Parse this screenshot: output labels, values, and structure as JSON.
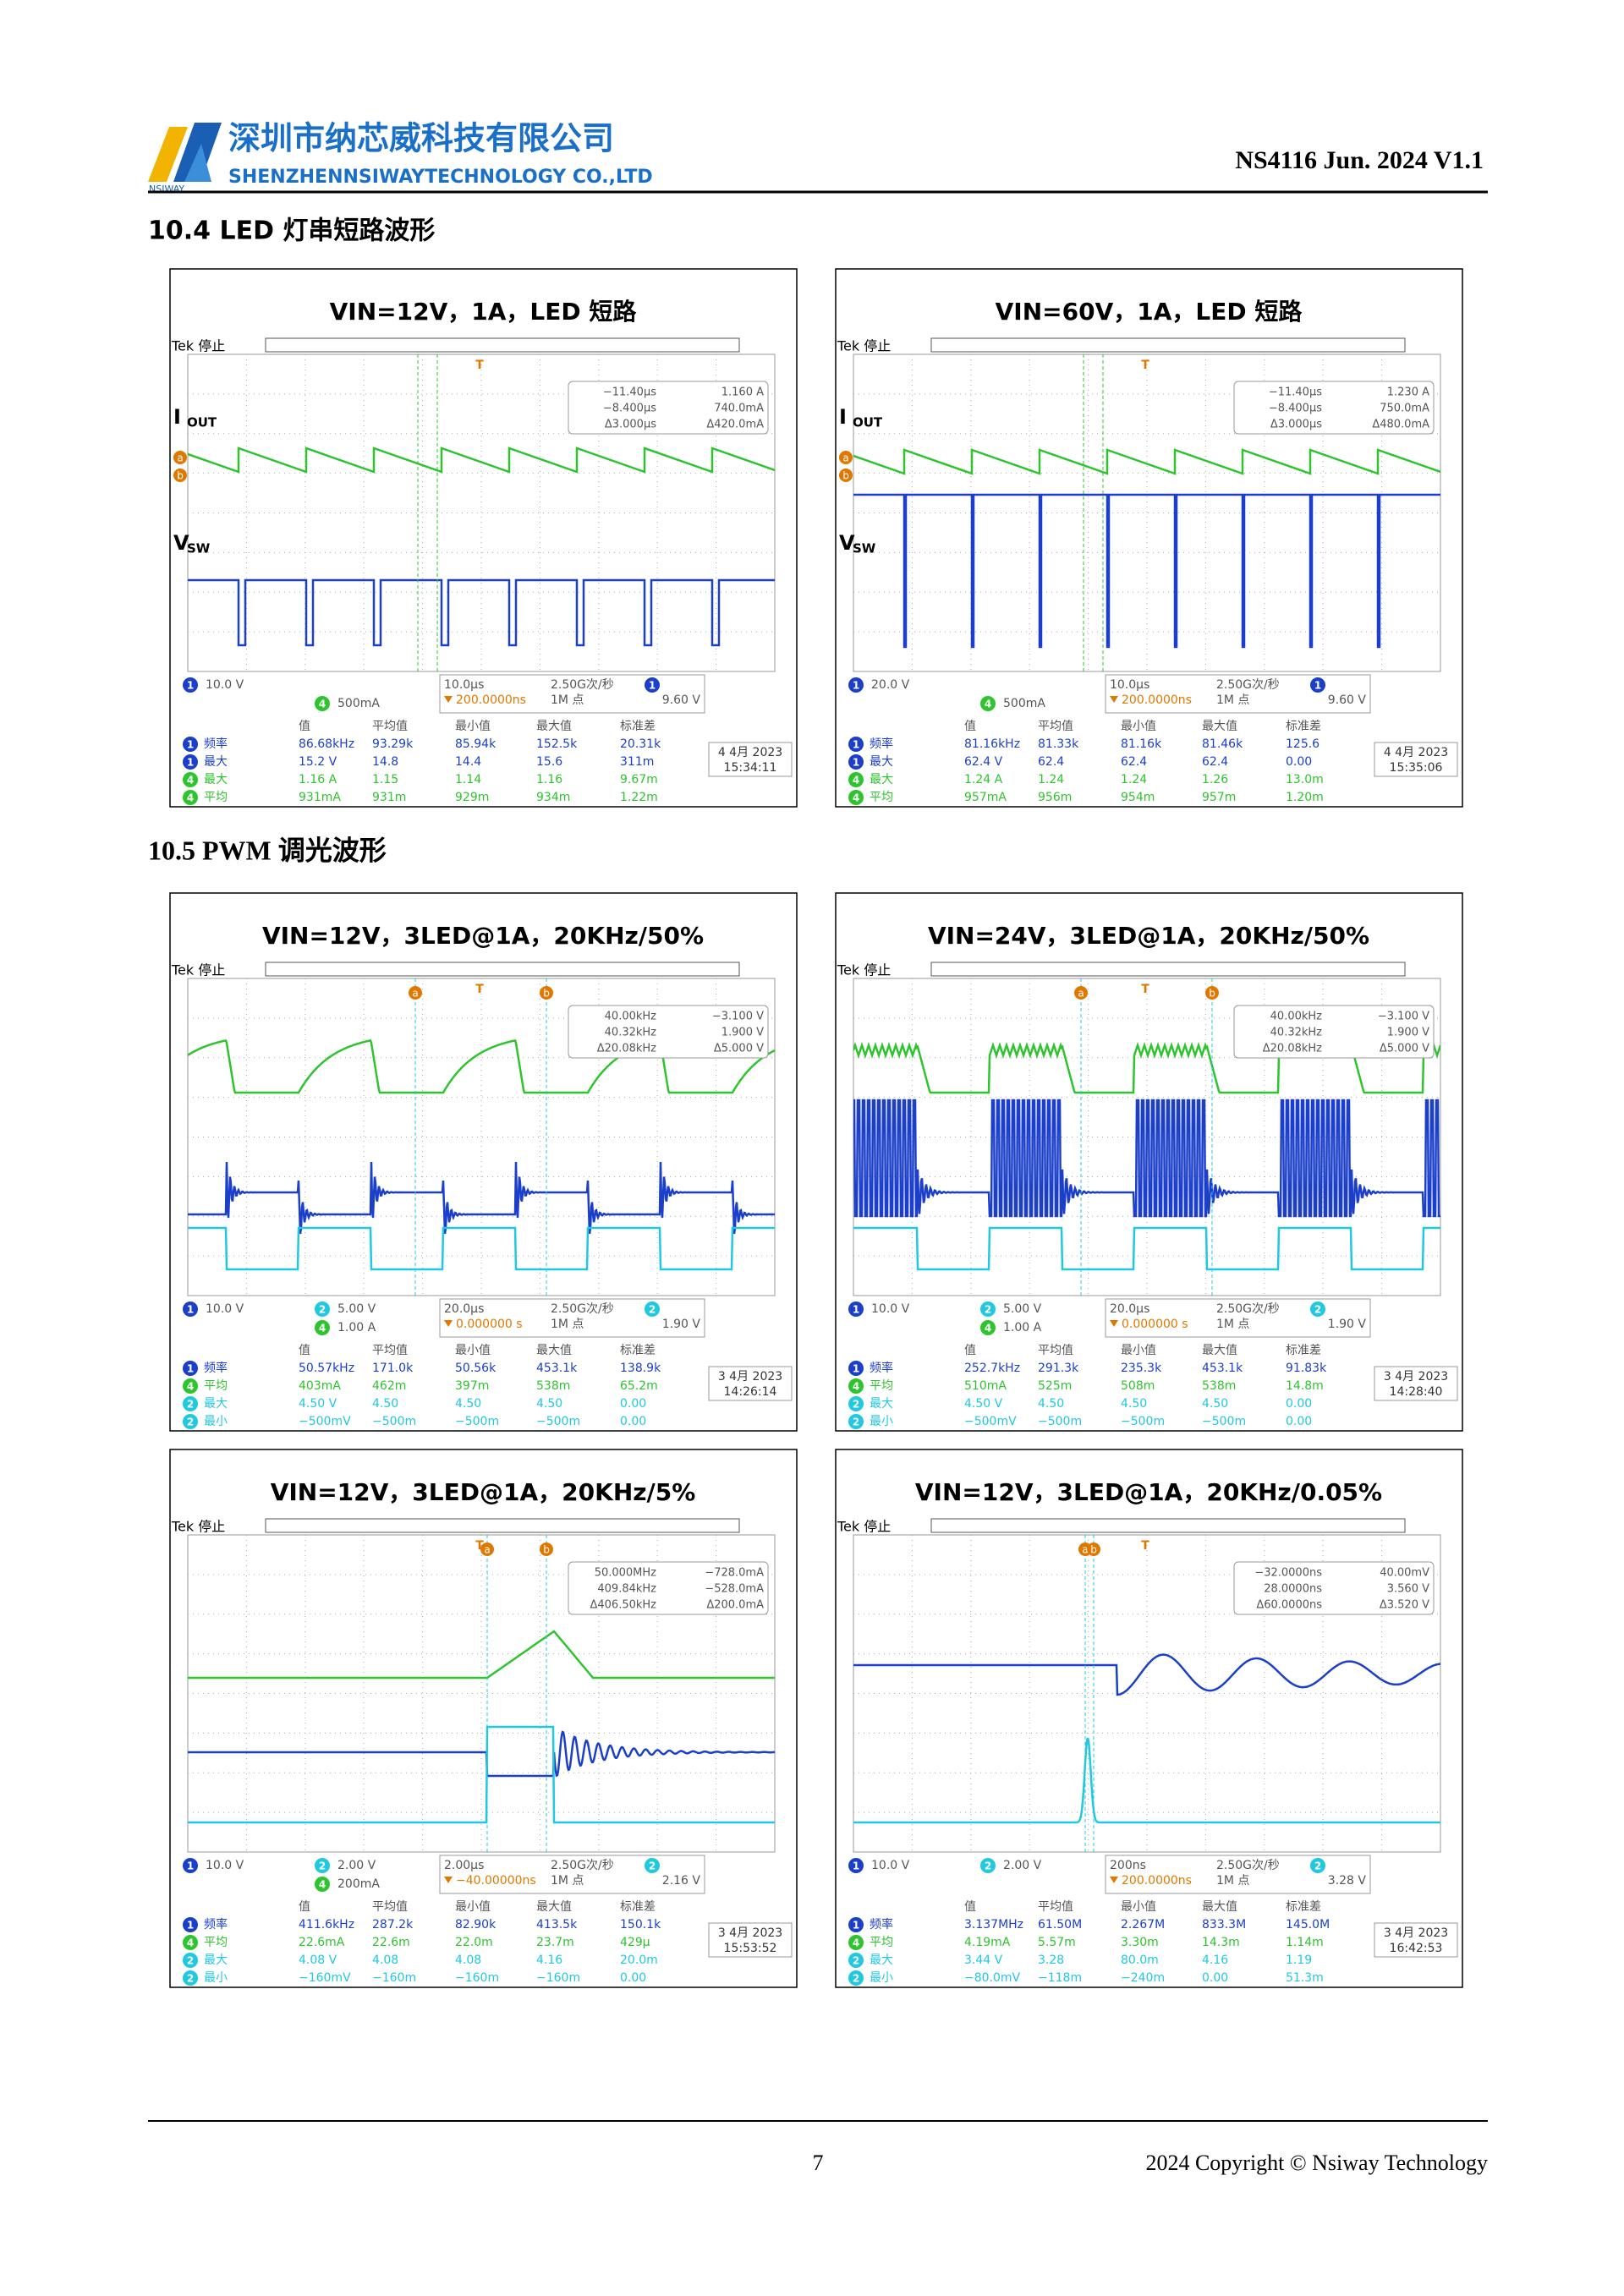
{
  "header": {
    "logo_text": "NSIWAY",
    "company_cn": "深圳市纳芯威科技有限公司",
    "company_en": "SHENZHENNSIWAYTECHNOLOGY CO.,LTD",
    "doc_id": "NS4116 Jun. 2024 V1.1"
  },
  "sections": [
    {
      "title": "10.4 LED 灯串短路波形"
    },
    {
      "title": "10.5 PWM 调光波形"
    }
  ],
  "cursor_letters": [
    "a",
    "b"
  ],
  "trigger_letter": "T",
  "panels": [
    {
      "title": "VIN=12V，1A，LED 短路",
      "status": "Tek 停止",
      "trace_labels": [
        {
          "main": "I",
          "sub": "OUT"
        },
        {
          "main": "V",
          "sub": "SW"
        }
      ],
      "cursor": [
        "−11.40µs",
        "1.160 A",
        "−8.400µs",
        "740.0mA",
        "Δ3.000µs",
        "Δ420.0mA"
      ],
      "channels": [
        [
          "1",
          "10.0 V"
        ],
        [
          "4",
          "500mA"
        ]
      ],
      "timebase": [
        "10.0µs",
        "200.0000ns",
        "2.50G次/秒",
        "1M 点",
        "9.60 V"
      ],
      "trigger_ch": "1",
      "meas_header": [
        "值",
        "平均值",
        "最小值",
        "最大值",
        "标准差"
      ],
      "meas_rows": [
        [
          "1",
          "频率",
          "86.68kHz",
          "93.29k",
          "85.94k",
          "152.5k",
          "20.31k"
        ],
        [
          "1",
          "最大",
          "15.2 V",
          "14.8",
          "14.4",
          "15.6",
          "311m"
        ],
        [
          "4",
          "最大",
          "1.16 A",
          "1.15",
          "1.14",
          "1.16",
          "9.67m"
        ],
        [
          "4",
          "平均",
          "931mA",
          "931m",
          "929m",
          "934m",
          "1.22m"
        ]
      ],
      "date": [
        "4 4月 2023",
        "15:34:11"
      ]
    },
    {
      "title": "VIN=60V，1A，LED 短路",
      "status": "Tek 停止",
      "trace_labels": [
        {
          "main": "I",
          "sub": "OUT"
        },
        {
          "main": "V",
          "sub": "SW"
        }
      ],
      "cursor": [
        "−11.40µs",
        "1.230 A",
        "−8.400µs",
        "750.0mA",
        "Δ3.000µs",
        "Δ480.0mA"
      ],
      "channels": [
        [
          "1",
          "20.0 V"
        ],
        [
          "4",
          "500mA"
        ]
      ],
      "timebase": [
        "10.0µs",
        "200.0000ns",
        "2.50G次/秒",
        "1M 点",
        "9.60 V"
      ],
      "trigger_ch": "1",
      "meas_header": [
        "值",
        "平均值",
        "最小值",
        "最大值",
        "标准差"
      ],
      "meas_rows": [
        [
          "1",
          "频率",
          "81.16kHz",
          "81.33k",
          "81.16k",
          "81.46k",
          "125.6"
        ],
        [
          "1",
          "最大",
          "62.4 V",
          "62.4",
          "62.4",
          "62.4",
          "0.00"
        ],
        [
          "4",
          "最大",
          "1.24 A",
          "1.24",
          "1.24",
          "1.26",
          "13.0m"
        ],
        [
          "4",
          "平均",
          "957mA",
          "956m",
          "954m",
          "957m",
          "1.20m"
        ]
      ],
      "date": [
        "4 4月 2023",
        "15:35:06"
      ]
    },
    {
      "title": "VIN=12V，3LED@1A，20KHz/50%",
      "status": "Tek 停止",
      "cursor": [
        "40.00kHz",
        "−3.100 V",
        "40.32kHz",
        "1.900 V",
        "Δ20.08kHz",
        "Δ5.000 V"
      ],
      "channels": [
        [
          "1",
          "10.0 V"
        ],
        [
          "2",
          "5.00 V"
        ],
        [
          "4",
          "1.00 A"
        ]
      ],
      "timebase": [
        "20.0µs",
        "0.000000 s",
        "2.50G次/秒",
        "1M 点",
        "1.90 V"
      ],
      "trigger_ch": "2",
      "meas_header": [
        "值",
        "平均值",
        "最小值",
        "最大值",
        "标准差"
      ],
      "meas_rows": [
        [
          "1",
          "频率",
          "50.57kHz",
          "171.0k",
          "50.56k",
          "453.1k",
          "138.9k"
        ],
        [
          "4",
          "平均",
          "403mA",
          "462m",
          "397m",
          "538m",
          "65.2m"
        ],
        [
          "2",
          "最大",
          "4.50 V",
          "4.50",
          "4.50",
          "4.50",
          "0.00"
        ],
        [
          "2",
          "最小",
          "−500mV",
          "−500m",
          "−500m",
          "−500m",
          "0.00"
        ]
      ],
      "date": [
        "3 4月 2023",
        "14:26:14"
      ]
    },
    {
      "title": "VIN=24V，3LED@1A，20KHz/50%",
      "status": "Tek 停止",
      "cursor": [
        "40.00kHz",
        "−3.100 V",
        "40.32kHz",
        "1.900 V",
        "Δ20.08kHz",
        "Δ5.000 V"
      ],
      "channels": [
        [
          "1",
          "10.0 V"
        ],
        [
          "2",
          "5.00 V"
        ],
        [
          "4",
          "1.00 A"
        ]
      ],
      "timebase": [
        "20.0µs",
        "0.000000 s",
        "2.50G次/秒",
        "1M 点",
        "1.90 V"
      ],
      "trigger_ch": "2",
      "meas_header": [
        "值",
        "平均值",
        "最小值",
        "最大值",
        "标准差"
      ],
      "meas_rows": [
        [
          "1",
          "频率",
          "252.7kHz",
          "291.3k",
          "235.3k",
          "453.1k",
          "91.83k"
        ],
        [
          "4",
          "平均",
          "510mA",
          "525m",
          "508m",
          "538m",
          "14.8m"
        ],
        [
          "2",
          "最大",
          "4.50 V",
          "4.50",
          "4.50",
          "4.50",
          "0.00"
        ],
        [
          "2",
          "最小",
          "−500mV",
          "−500m",
          "−500m",
          "−500m",
          "0.00"
        ]
      ],
      "date": [
        "3 4月 2023",
        "14:28:40"
      ]
    },
    {
      "title": "VIN=12V，3LED@1A，20KHz/5%",
      "status": "Tek 停止",
      "cursor": [
        "50.000MHz",
        "−728.0mA",
        "409.84kHz",
        "−528.0mA",
        "Δ406.50kHz",
        "Δ200.0mA"
      ],
      "channels": [
        [
          "1",
          "10.0 V"
        ],
        [
          "2",
          "2.00 V"
        ],
        [
          "4",
          "200mA"
        ]
      ],
      "timebase": [
        "2.00µs",
        "−40.00000ns",
        "2.50G次/秒",
        "1M 点",
        "2.16 V"
      ],
      "trigger_ch": "2",
      "meas_header": [
        "值",
        "平均值",
        "最小值",
        "最大值",
        "标准差"
      ],
      "meas_rows": [
        [
          "1",
          "频率",
          "411.6kHz",
          "287.2k",
          "82.90k",
          "413.5k",
          "150.1k"
        ],
        [
          "4",
          "平均",
          "22.6mA",
          "22.6m",
          "22.0m",
          "23.7m",
          "429µ"
        ],
        [
          "2",
          "最大",
          "4.08 V",
          "4.08",
          "4.08",
          "4.16",
          "20.0m"
        ],
        [
          "2",
          "最小",
          "−160mV",
          "−160m",
          "−160m",
          "−160m",
          "0.00"
        ]
      ],
      "date": [
        "3 4月 2023",
        "15:53:52"
      ]
    },
    {
      "title": "VIN=12V，3LED@1A，20KHz/0.05%",
      "status": "Tek 停止",
      "cursor": [
        "−32.0000ns",
        "40.00mV",
        "28.0000ns",
        "3.560 V",
        "Δ60.0000ns",
        "Δ3.520 V"
      ],
      "channels": [
        [
          "1",
          "10.0 V"
        ],
        [
          "2",
          "2.00 V"
        ]
      ],
      "timebase": [
        "200ns",
        "200.0000ns",
        "2.50G次/秒",
        "1M 点",
        "3.28 V"
      ],
      "trigger_ch": "2",
      "meas_header": [
        "值",
        "平均值",
        "最小值",
        "最大值",
        "标准差"
      ],
      "meas_rows": [
        [
          "1",
          "频率",
          "3.137MHz",
          "61.50M",
          "2.267M",
          "833.3M",
          "145.0M"
        ],
        [
          "4",
          "平均",
          "4.19mA",
          "5.57m",
          "3.30m",
          "14.3m",
          "1.14m"
        ],
        [
          "2",
          "最大",
          "3.44 V",
          "3.28",
          "80.0m",
          "4.16",
          "1.19"
        ],
        [
          "2",
          "最小",
          "−80.0mV",
          "−118m",
          "−240m",
          "0.00",
          "51.3m"
        ]
      ],
      "date": [
        "3 4月 2023",
        "16:42:53"
      ]
    }
  ],
  "footer": {
    "page": "7",
    "copyright": "2024 Copyright © Nsiway Technology"
  }
}
